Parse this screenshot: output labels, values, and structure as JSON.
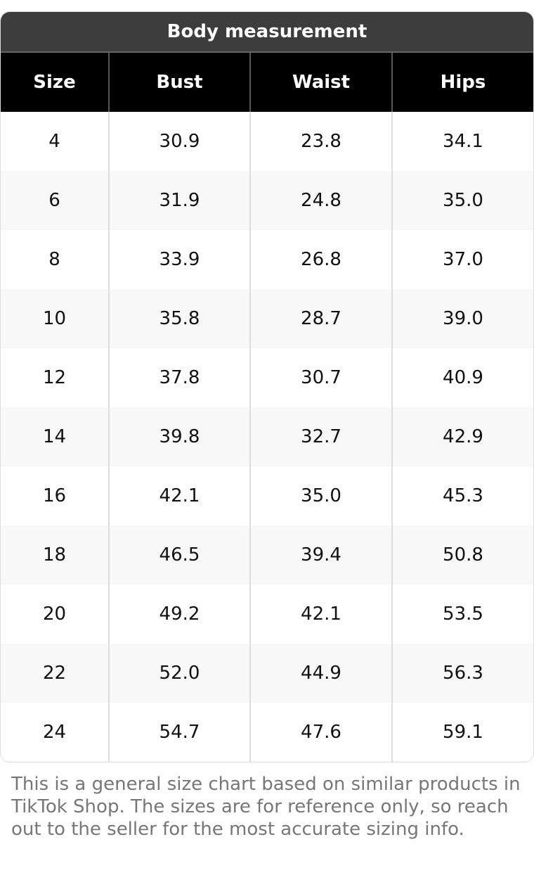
{
  "title": "Body measurement",
  "columns": [
    "Size",
    "Bust",
    "Waist",
    "Hips"
  ],
  "rows": [
    [
      "4",
      "30.9",
      "23.8",
      "34.1"
    ],
    [
      "6",
      "31.9",
      "24.8",
      "35.0"
    ],
    [
      "8",
      "33.9",
      "26.8",
      "37.0"
    ],
    [
      "10",
      "35.8",
      "28.7",
      "39.0"
    ],
    [
      "12",
      "37.8",
      "30.7",
      "40.9"
    ],
    [
      "14",
      "39.8",
      "32.7",
      "42.9"
    ],
    [
      "16",
      "42.1",
      "35.0",
      "45.3"
    ],
    [
      "18",
      "46.5",
      "39.4",
      "50.8"
    ],
    [
      "20",
      "49.2",
      "42.1",
      "53.5"
    ],
    [
      "22",
      "52.0",
      "44.9",
      "56.3"
    ],
    [
      "24",
      "54.7",
      "47.6",
      "59.1"
    ]
  ],
  "note": "This is a general size chart based on similar products in TikTok Shop. The sizes are for reference only, so reach out to the seller for the most accurate sizing info."
}
